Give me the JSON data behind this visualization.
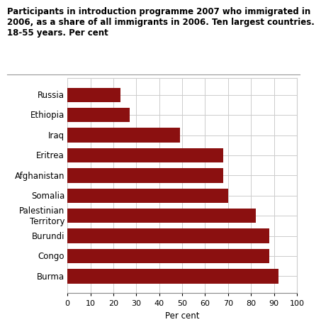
{
  "title_line1": "Participants in introduction programme 2007 who immigrated in",
  "title_line2": "2006, as a share of all immigrants in 2006. Ten largest countries.",
  "title_line3": "18-55 years. Per cent",
  "categories": [
    "Russia",
    "Ethiopia",
    "Iraq",
    "Eritrea",
    "Afghanistan",
    "Somalia",
    "Palestinian\nTerritory",
    "Burundi",
    "Congo",
    "Burma"
  ],
  "values": [
    23,
    27,
    49,
    68,
    68,
    70,
    82,
    88,
    88,
    92
  ],
  "bar_color": "#8B1010",
  "xlabel": "Per cent",
  "xlim": [
    0,
    100
  ],
  "xticks": [
    0,
    10,
    20,
    30,
    40,
    50,
    60,
    70,
    80,
    90,
    100
  ],
  "background_color": "#ffffff",
  "grid_color": "#cccccc",
  "title_fontsize": 8.5,
  "label_fontsize": 8.5,
  "tick_fontsize": 8.0
}
